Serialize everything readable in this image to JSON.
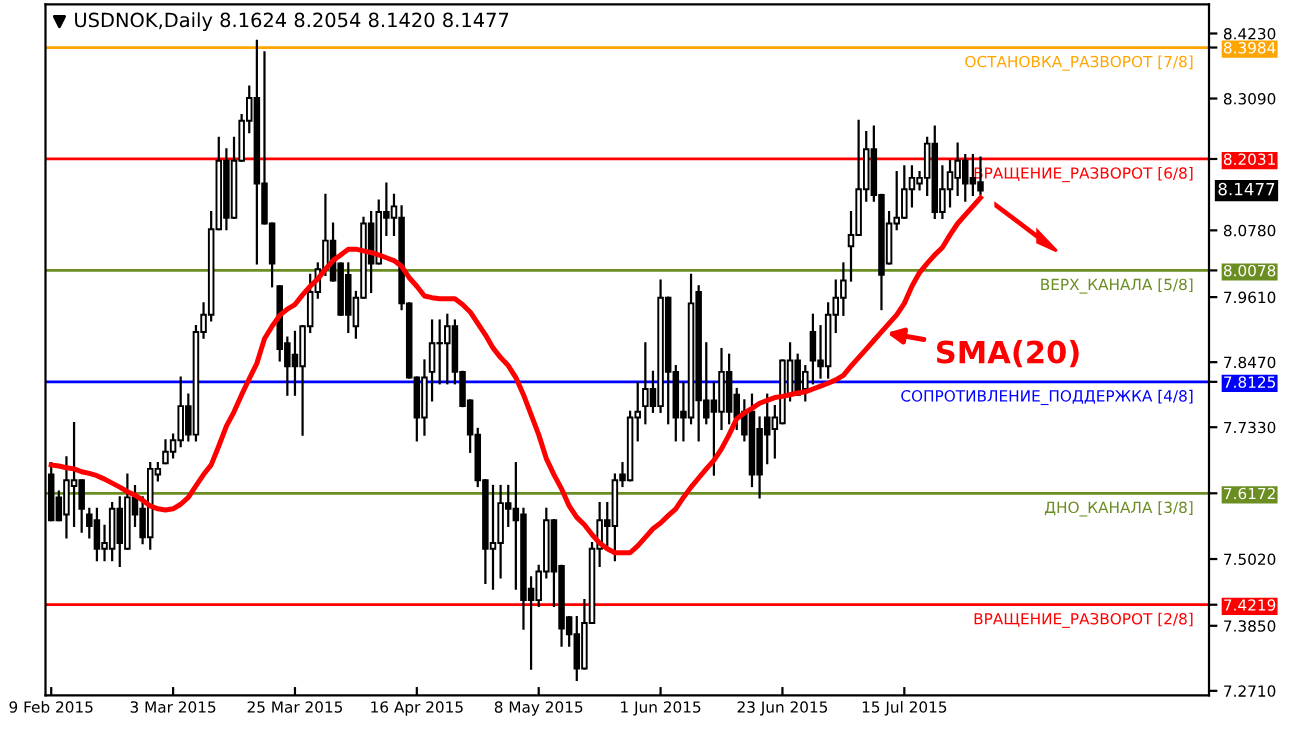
{
  "chart_data": {
    "type": "candlestick",
    "title": "USDNOK,Daily 8.1624 8.2054 8.1420 8.1477",
    "categories": [
      "9 Feb 2015",
      null,
      null,
      null,
      null,
      null,
      null,
      null,
      null,
      null,
      null,
      null,
      null,
      null,
      null,
      null,
      "3 Mar 2015",
      null,
      null,
      null,
      null,
      null,
      null,
      null,
      null,
      null,
      null,
      null,
      null,
      null,
      null,
      null,
      "25 Mar 2015",
      null,
      null,
      null,
      null,
      null,
      null,
      null,
      null,
      null,
      null,
      null,
      null,
      null,
      null,
      null,
      "16 Apr 2015",
      null,
      null,
      null,
      null,
      null,
      null,
      null,
      null,
      null,
      null,
      null,
      null,
      null,
      null,
      null,
      "8 May 2015",
      null,
      null,
      null,
      null,
      null,
      null,
      null,
      null,
      null,
      null,
      null,
      null,
      null,
      null,
      null,
      "1 Jun 2015",
      null,
      null,
      null,
      null,
      null,
      null,
      null,
      null,
      null,
      null,
      null,
      null,
      null,
      null,
      null,
      "23 Jun 2015",
      null,
      null,
      null,
      null,
      null,
      null,
      null,
      null,
      null,
      null,
      null,
      null,
      null,
      null,
      null,
      "15 Jul 2015",
      null,
      null,
      null,
      null,
      null,
      null,
      null,
      null,
      null,
      null
    ],
    "ohlc": [
      [
        7.65,
        7.67,
        7.57,
        7.57
      ],
      [
        7.61,
        7.62,
        7.57,
        7.57
      ],
      [
        7.58,
        7.68,
        7.54,
        7.64
      ],
      [
        7.63,
        7.74,
        7.56,
        7.64
      ],
      [
        7.64,
        7.64,
        7.55,
        7.59
      ],
      [
        7.58,
        7.59,
        7.54,
        7.56
      ],
      [
        7.57,
        7.59,
        7.5,
        7.52
      ],
      [
        7.52,
        7.56,
        7.5,
        7.53
      ],
      [
        7.52,
        7.6,
        7.5,
        7.59
      ],
      [
        7.59,
        7.61,
        7.49,
        7.53
      ],
      [
        7.52,
        7.65,
        7.52,
        7.61
      ],
      [
        7.61,
        7.63,
        7.56,
        7.58
      ],
      [
        7.59,
        7.61,
        7.53,
        7.54
      ],
      [
        7.54,
        7.67,
        7.52,
        7.66
      ],
      [
        7.65,
        7.67,
        7.64,
        7.66
      ],
      [
        7.67,
        7.71,
        7.67,
        7.69
      ],
      [
        7.69,
        7.72,
        7.68,
        7.71
      ],
      [
        7.71,
        7.82,
        7.7,
        7.77
      ],
      [
        7.77,
        7.79,
        7.71,
        7.72
      ],
      [
        7.72,
        7.91,
        7.71,
        7.9
      ],
      [
        7.9,
        7.95,
        7.89,
        7.93
      ],
      [
        7.93,
        8.11,
        7.92,
        8.08
      ],
      [
        8.08,
        8.24,
        8.08,
        8.2
      ],
      [
        8.2,
        8.22,
        8.08,
        8.1
      ],
      [
        8.1,
        8.24,
        8.1,
        8.2
      ],
      [
        8.2,
        8.28,
        8.2,
        8.27
      ],
      [
        8.27,
        8.33,
        8.25,
        8.31
      ],
      [
        8.31,
        8.41,
        8.02,
        8.16
      ],
      [
        8.16,
        8.39,
        8.09,
        8.09
      ],
      [
        8.09,
        8.09,
        7.98,
        8.02
      ],
      [
        7.98,
        7.98,
        7.85,
        7.87
      ],
      [
        7.88,
        7.89,
        7.79,
        7.84
      ],
      [
        7.86,
        7.9,
        7.79,
        7.84
      ],
      [
        7.84,
        7.91,
        7.72,
        7.91
      ],
      [
        7.91,
        8.0,
        7.9,
        7.97
      ],
      [
        7.97,
        8.02,
        7.96,
        8.01
      ],
      [
        8.01,
        8.14,
        8.0,
        8.06
      ],
      [
        8.06,
        8.09,
        7.99,
        7.99
      ],
      [
        8.02,
        8.02,
        7.93,
        7.93
      ],
      [
        8.0,
        8.02,
        7.9,
        7.93
      ],
      [
        7.91,
        7.97,
        7.89,
        7.96
      ],
      [
        7.96,
        8.1,
        7.96,
        8.09
      ],
      [
        8.09,
        8.11,
        7.97,
        8.02
      ],
      [
        8.02,
        8.13,
        8.02,
        8.11
      ],
      [
        8.11,
        8.16,
        8.07,
        8.1
      ],
      [
        8.1,
        8.14,
        8.07,
        8.12
      ],
      [
        8.1,
        8.12,
        7.94,
        7.95
      ],
      [
        7.95,
        7.95,
        7.82,
        7.82
      ],
      [
        7.82,
        7.82,
        7.71,
        7.75
      ],
      [
        7.75,
        7.85,
        7.72,
        7.82
      ],
      [
        7.83,
        7.92,
        7.78,
        7.88
      ],
      [
        7.88,
        7.92,
        7.81,
        7.88
      ],
      [
        7.88,
        7.93,
        7.81,
        7.91
      ],
      [
        7.91,
        7.92,
        7.81,
        7.83
      ],
      [
        7.83,
        7.83,
        7.77,
        7.77
      ],
      [
        7.78,
        7.78,
        7.69,
        7.72
      ],
      [
        7.72,
        7.73,
        7.63,
        7.64
      ],
      [
        7.64,
        7.64,
        7.46,
        7.52
      ],
      [
        7.52,
        7.63,
        7.45,
        7.53
      ],
      [
        7.53,
        7.63,
        7.47,
        7.6
      ],
      [
        7.6,
        7.63,
        7.56,
        7.59
      ],
      [
        7.59,
        7.67,
        7.45,
        7.57
      ],
      [
        7.58,
        7.59,
        7.38,
        7.43
      ],
      [
        7.45,
        7.47,
        7.31,
        7.43
      ],
      [
        7.43,
        7.49,
        7.42,
        7.48
      ],
      [
        7.48,
        7.59,
        7.47,
        7.57
      ],
      [
        7.57,
        7.57,
        7.42,
        7.48
      ],
      [
        7.49,
        7.49,
        7.35,
        7.38
      ],
      [
        7.4,
        7.4,
        7.35,
        7.37
      ],
      [
        7.37,
        7.4,
        7.29,
        7.31
      ],
      [
        7.31,
        7.43,
        7.31,
        7.39
      ],
      [
        7.39,
        7.53,
        7.39,
        7.52
      ],
      [
        7.52,
        7.6,
        7.49,
        7.57
      ],
      [
        7.57,
        7.6,
        7.52,
        7.56
      ],
      [
        7.56,
        7.65,
        7.5,
        7.64
      ],
      [
        7.65,
        7.67,
        7.63,
        7.64
      ],
      [
        7.64,
        7.76,
        7.64,
        7.75
      ],
      [
        7.75,
        7.81,
        7.71,
        7.76
      ],
      [
        7.77,
        7.88,
        7.74,
        7.8
      ],
      [
        7.8,
        7.83,
        7.76,
        7.77
      ],
      [
        7.77,
        7.99,
        7.76,
        7.96
      ],
      [
        7.96,
        7.96,
        7.74,
        7.83
      ],
      [
        7.83,
        7.84,
        7.71,
        7.75
      ],
      [
        7.76,
        7.81,
        7.71,
        7.75
      ],
      [
        7.75,
        8.0,
        7.74,
        7.95
      ],
      [
        7.97,
        7.98,
        7.71,
        7.78
      ],
      [
        7.78,
        7.88,
        7.74,
        7.75
      ],
      [
        7.78,
        7.81,
        7.65,
        7.76
      ],
      [
        7.76,
        7.87,
        7.73,
        7.83
      ],
      [
        7.83,
        7.86,
        7.74,
        7.76
      ],
      [
        7.79,
        7.8,
        7.73,
        7.75
      ],
      [
        7.76,
        7.78,
        7.71,
        7.72
      ],
      [
        7.76,
        7.79,
        7.63,
        7.65
      ],
      [
        7.73,
        7.75,
        7.61,
        7.65
      ],
      [
        7.75,
        7.79,
        7.67,
        7.72
      ],
      [
        7.73,
        7.77,
        7.68,
        7.75
      ],
      [
        7.74,
        7.85,
        7.74,
        7.85
      ],
      [
        7.79,
        7.88,
        7.78,
        7.85
      ],
      [
        7.85,
        7.86,
        7.79,
        7.79
      ],
      [
        7.8,
        7.84,
        7.78,
        7.83
      ],
      [
        7.9,
        7.93,
        7.81,
        7.85
      ],
      [
        7.85,
        7.91,
        7.82,
        7.84
      ],
      [
        7.84,
        7.95,
        7.82,
        7.93
      ],
      [
        7.93,
        7.99,
        7.9,
        7.96
      ],
      [
        7.96,
        8.02,
        7.93,
        7.99
      ],
      [
        8.05,
        8.11,
        7.99,
        8.07
      ],
      [
        8.07,
        8.27,
        8.07,
        8.15
      ],
      [
        8.15,
        8.25,
        8.13,
        8.22
      ],
      [
        8.22,
        8.26,
        8.13,
        8.14
      ],
      [
        8.14,
        8.14,
        7.94,
        8.0
      ],
      [
        8.02,
        8.11,
        8.02,
        8.09
      ],
      [
        8.09,
        8.18,
        8.08,
        8.1
      ],
      [
        8.1,
        8.19,
        8.1,
        8.15
      ],
      [
        8.15,
        8.19,
        8.12,
        8.17
      ],
      [
        8.16,
        8.18,
        8.15,
        8.17
      ],
      [
        8.17,
        8.24,
        8.14,
        8.23
      ],
      [
        8.23,
        8.26,
        8.1,
        8.11
      ],
      [
        8.11,
        8.19,
        8.1,
        8.15
      ],
      [
        8.15,
        8.2,
        8.12,
        8.18
      ],
      [
        8.17,
        8.23,
        8.14,
        8.2
      ],
      [
        8.2,
        8.21,
        8.13,
        8.16
      ],
      [
        8.17,
        8.21,
        8.14,
        8.16
      ],
      [
        8.1624,
        8.2054,
        8.142,
        8.1477
      ]
    ],
    "series": [
      {
        "name": "SMA(20)",
        "type": "line",
        "color": "#ff0000",
        "values": [
          7.667,
          7.665,
          7.662,
          7.66,
          7.655,
          7.652,
          7.648,
          7.642,
          7.635,
          7.628,
          7.62,
          7.614,
          7.605,
          7.595,
          7.59,
          7.588,
          7.59,
          7.598,
          7.61,
          7.63,
          7.65,
          7.667,
          7.7,
          7.735,
          7.76,
          7.79,
          7.818,
          7.845,
          7.888,
          7.91,
          7.929,
          7.94,
          7.948,
          7.965,
          7.98,
          7.993,
          8.01,
          8.025,
          8.035,
          8.045,
          8.045,
          8.042,
          8.039,
          8.035,
          8.03,
          8.025,
          8.015,
          7.995,
          7.98,
          7.963,
          7.96,
          7.958,
          7.958,
          7.958,
          7.948,
          7.935,
          7.915,
          7.895,
          7.872,
          7.855,
          7.841,
          7.82,
          7.79,
          7.755,
          7.72,
          7.678,
          7.65,
          7.625,
          7.595,
          7.575,
          7.562,
          7.545,
          7.53,
          7.52,
          7.513,
          7.513,
          7.513,
          7.525,
          7.54,
          7.555,
          7.565,
          7.578,
          7.59,
          7.61,
          7.628,
          7.644,
          7.66,
          7.675,
          7.695,
          7.72,
          7.748,
          7.758,
          7.766,
          7.775,
          7.78,
          7.785,
          7.787,
          7.79,
          7.793,
          7.795,
          7.8,
          7.805,
          7.81,
          7.816,
          7.824,
          7.84,
          7.855,
          7.87,
          7.885,
          7.9,
          7.915,
          7.93,
          7.95,
          7.98,
          8.004,
          8.02,
          8.035,
          8.048,
          8.07,
          8.09,
          8.105,
          8.12,
          8.135
        ]
      }
    ],
    "ylim": [
      7.263,
      8.474
    ],
    "yticks": [
      {
        "value": 8.423,
        "label": "8.4230"
      },
      {
        "value": 8.3984,
        "label": "8.3984"
      },
      {
        "value": 8.309,
        "label": "8.3090"
      },
      {
        "value": 8.2031,
        "label": "8.2031"
      },
      {
        "value": 8.0078,
        "label": "8.0078"
      },
      {
        "value": 7.8125,
        "label": "7.8125"
      },
      {
        "value": 7.6172,
        "label": "7.6172"
      },
      {
        "value": 7.4219,
        "label": "7.4219"
      },
      {
        "value": 8.078,
        "label": "8.0780"
      },
      {
        "value": 7.961,
        "label": "7.9610"
      },
      {
        "value": 7.847,
        "label": "7.8470"
      },
      {
        "value": 7.733,
        "label": "7.7330"
      },
      {
        "value": 7.502,
        "label": "7.5020"
      },
      {
        "value": 7.385,
        "label": "7.3850"
      },
      {
        "value": 7.271,
        "label": "7.2710"
      }
    ],
    "ref_lines": [
      {
        "axis": "y",
        "value": 8.3984,
        "label": "ОСТАНОВКА_РАЗВОРОТ [7/8]",
        "color": "#ffa500"
      },
      {
        "axis": "y",
        "value": 8.2031,
        "label": "ВРАЩЕНИЕ_РАЗВОРОТ [6/8]",
        "color": "#ff0000"
      },
      {
        "axis": "y",
        "value": 8.0078,
        "label": "ВЕРХ_КАНАЛА [5/8]",
        "color": "#6b8e23"
      },
      {
        "axis": "y",
        "value": 7.8125,
        "label": "СОПРОТИВЛЕНИЕ_ПОДДЕРЖКА [4/8]",
        "color": "#0000ff"
      },
      {
        "axis": "y",
        "value": 7.6172,
        "label": "ДНО_КАНАЛА [3/8]",
        "color": "#6b8e23"
      },
      {
        "axis": "y",
        "value": 7.4219,
        "label": "ВРАЩЕНИЕ_РАЗВОРОТ [2/8]",
        "color": "#ff0000"
      }
    ],
    "annotations": [
      "8.1477"
    ],
    "grid": false
  }
}
